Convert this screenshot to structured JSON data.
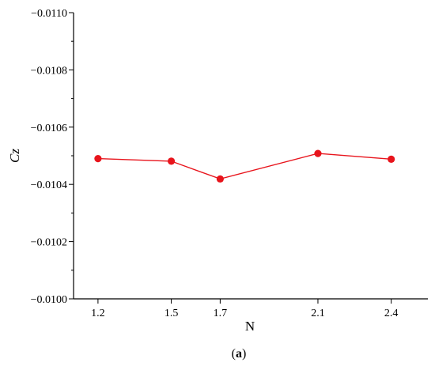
{
  "chart_data": {
    "type": "line",
    "x": [
      1.2,
      1.5,
      1.7,
      2.1,
      2.4
    ],
    "x_tick_labels": [
      "1.2",
      "1.5",
      "1.7",
      "2.1",
      "2.4"
    ],
    "series": [
      {
        "values": [
          -0.01049,
          -0.010481,
          -0.010419,
          -0.010508,
          -0.010488
        ],
        "color": "#e8141c"
      }
    ],
    "xlabel": "N",
    "ylabel": "Cz",
    "ylim": [
      -0.01,
      -0.011
    ],
    "y_ticks": [
      -0.01,
      -0.0102,
      -0.0104,
      -0.0106,
      -0.0108,
      -0.011
    ],
    "y_tick_labels": [
      "−0.0100",
      "−0.0102",
      "−0.0104",
      "−0.0106",
      "−0.0108",
      "−0.0110"
    ],
    "grid": false,
    "caption_prefix": "(",
    "caption_letter": "a",
    "caption_suffix": ")"
  }
}
